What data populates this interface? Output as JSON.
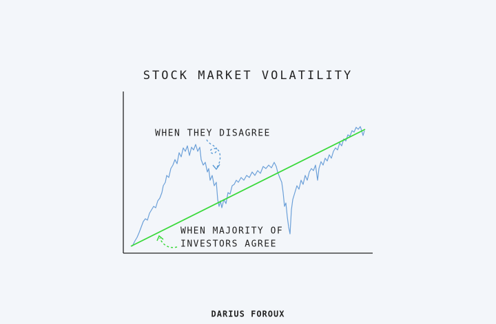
{
  "title": "STOCK MARKET VOLATILITY",
  "annotations": [
    {
      "text": "WHEN THEY DISAGREE"
    },
    {
      "lines": [
        "WHEN MAJORITY OF",
        "INVESTORS AGREE"
      ]
    }
  ],
  "footer": "DARIUS FOROUX"
}
